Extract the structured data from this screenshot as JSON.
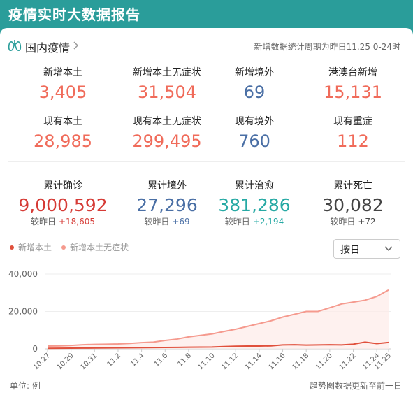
{
  "header": {
    "title": "疫情实时大数据报告"
  },
  "section": {
    "title": "国内疫情",
    "period": "新增数据统计周期为昨日11.25 0-24时"
  },
  "colors": {
    "red": "#f06b5a",
    "blue": "#4a6fa5",
    "dark_red": "#d63b36",
    "teal": "#26a9a4",
    "gray": "#444444",
    "line_main": "#e0503c",
    "line_asym": "#f59a8e"
  },
  "row1": [
    {
      "label": "新增本土",
      "value": "3,405"
    },
    {
      "label": "新增本土无症状",
      "value": "31,504"
    },
    {
      "label": "新增境外",
      "value": "69"
    },
    {
      "label": "港澳台新增",
      "value": "15,131"
    }
  ],
  "row2": [
    {
      "label": "现有本土",
      "value": "28,985"
    },
    {
      "label": "现有本土无症状",
      "value": "299,495"
    },
    {
      "label": "现有境外",
      "value": "760"
    },
    {
      "label": "现有重症",
      "value": "112"
    }
  ],
  "row3": [
    {
      "label": "累计确诊",
      "value": "9,000,592",
      "delta_label": "较昨日",
      "delta": "+18,605"
    },
    {
      "label": "累计境外",
      "value": "27,296",
      "delta_label": "较昨日",
      "delta": "+69"
    },
    {
      "label": "累计治愈",
      "value": "381,286",
      "delta_label": "较昨日",
      "delta": "+2,194"
    },
    {
      "label": "累计死亡",
      "value": "30,082",
      "delta_label": "较昨日",
      "delta": "+72"
    }
  ],
  "select": {
    "value": "按日"
  },
  "footer": {
    "unit": "单位: 例",
    "note": "趋势图数据更新至前一日"
  },
  "chart_data": {
    "type": "line",
    "x": [
      "10.27",
      "10.28",
      "10.29",
      "10.30",
      "10.31",
      "11.1",
      "11.2",
      "11.3",
      "11.4",
      "11.5",
      "11.6",
      "11.7",
      "11.8",
      "11.9",
      "11.10",
      "11.11",
      "11.12",
      "11.13",
      "11.14",
      "11.15",
      "11.16",
      "11.17",
      "11.18",
      "11.19",
      "11.20",
      "11.21",
      "11.22",
      "11.23",
      "11.24",
      "11.25"
    ],
    "tick_labels": [
      "10.27",
      "10.29",
      "10.31",
      "11.2",
      "11.4",
      "11.6",
      "11.8",
      "11.10",
      "11.12",
      "11.14",
      "11.16",
      "11.18",
      "11.20",
      "11.22",
      "11.24",
      "11.25"
    ],
    "series": [
      {
        "name": "新增本土",
        "values": [
          300,
          350,
          380,
          400,
          450,
          520,
          560,
          600,
          650,
          700,
          760,
          800,
          900,
          950,
          1000,
          1200,
          1400,
          1500,
          1500,
          1600,
          2100,
          2200,
          2000,
          2100,
          2200,
          2100,
          2500,
          3600,
          2800,
          3400
        ]
      },
      {
        "name": "新增本土无症状",
        "values": [
          1500,
          1600,
          1800,
          2200,
          2400,
          2500,
          2600,
          2900,
          3300,
          3600,
          4500,
          5200,
          6400,
          7200,
          8000,
          9300,
          10500,
          12000,
          13500,
          15000,
          17000,
          18500,
          20000,
          20000,
          22000,
          24000,
          25000,
          26000,
          28000,
          31504
        ]
      }
    ],
    "yticks": [
      "0",
      "20,000",
      "40,000"
    ],
    "ylim": [
      0,
      40000
    ]
  }
}
